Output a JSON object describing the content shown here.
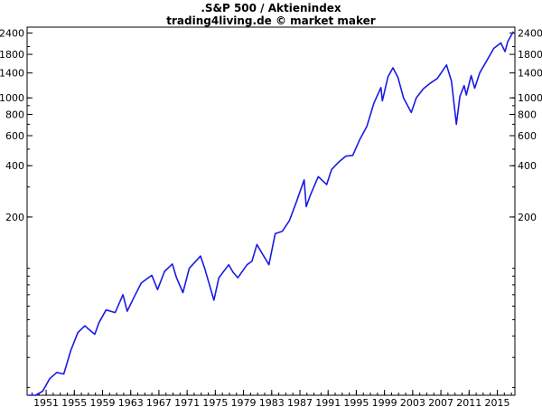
{
  "chart_data": {
    "type": "line",
    "title": ".S&P 500 / Aktienindex",
    "subtitle": "trading4living.de © market maker",
    "xlabel": "",
    "ylabel": "",
    "y_scale": "log",
    "ylim": [
      18,
      2600
    ],
    "xlim": [
      1948.3,
      2017.5
    ],
    "grid": false,
    "legend": "none",
    "line_color": "#1a1ae6",
    "y_ticks": [
      200,
      400,
      600,
      800,
      1000,
      1400,
      1800,
      2400
    ],
    "y_tick_labels": [
      "200",
      "400",
      "600",
      "800",
      "1000",
      "1400",
      "1800",
      "2400"
    ],
    "x_ticks": [
      1951,
      1955,
      1959,
      1963,
      1967,
      1971,
      1975,
      1979,
      1983,
      1987,
      1991,
      1995,
      1999,
      2003,
      2007,
      2011,
      2015
    ],
    "x_tick_labels": [
      "1951",
      "1955",
      "1959",
      "1963",
      "1967",
      "1971",
      "1975",
      "1979",
      "1983",
      "1987",
      "1991",
      "1995",
      "1999",
      "2003",
      "2007",
      "2011",
      "2015"
    ],
    "series": [
      {
        "x": [
          1948.5,
          1949.5,
          1950.5,
          1951.5,
          1952.5,
          1953.5,
          1954.5,
          1955.5,
          1956.5,
          1957.0,
          1957.9,
          1958.5,
          1959.5,
          1960.8,
          1961.9,
          1962.5,
          1963.5,
          1964.5,
          1965.5,
          1966.0,
          1966.8,
          1967.8,
          1968.9,
          1969.5,
          1970.4,
          1971.3,
          1972.9,
          1973.5,
          1974.8,
          1975.5,
          1976.9,
          1977.5,
          1978.2,
          1979.5,
          1980.2,
          1980.9,
          1981.5,
          1982.6,
          1983.5,
          1984.5,
          1985.5,
          1986.5,
          1987.6,
          1987.9,
          1988.5,
          1989.6,
          1990.8,
          1991.5,
          1992.5,
          1993.5,
          1994.5,
          1995.5,
          1996.5,
          1997.5,
          1998.5,
          1998.7,
          1999.5,
          2000.2,
          2000.9,
          2001.7,
          2002.8,
          2003.5,
          2004.5,
          2005.5,
          2006.5,
          2007.8,
          2008.5,
          2009.2,
          2009.7,
          2010.3,
          2010.6,
          2011.3,
          2011.8,
          2012.5,
          2013.5,
          2014.5,
          2015.5,
          2016.1,
          2016.5,
          2017.3
        ],
        "y": [
          15.5,
          16,
          19,
          22.5,
          24.5,
          24,
          33,
          42,
          46,
          44,
          41,
          48,
          57,
          55,
          70,
          56,
          68,
          82,
          88,
          91,
          75,
          96,
          106,
          88,
          72,
          100,
          118,
          100,
          65,
          88,
          105,
          95,
          88,
          105,
          110,
          138,
          125,
          105,
          160,
          165,
          190,
          245,
          330,
          230,
          270,
          345,
          310,
          380,
          420,
          455,
          460,
          570,
          680,
          930,
          1150,
          960,
          1330,
          1500,
          1320,
          1000,
          820,
          1000,
          1130,
          1220,
          1300,
          1560,
          1250,
          700,
          1020,
          1180,
          1040,
          1350,
          1140,
          1400,
          1650,
          1950,
          2100,
          1870,
          2150,
          2450
        ]
      }
    ]
  }
}
